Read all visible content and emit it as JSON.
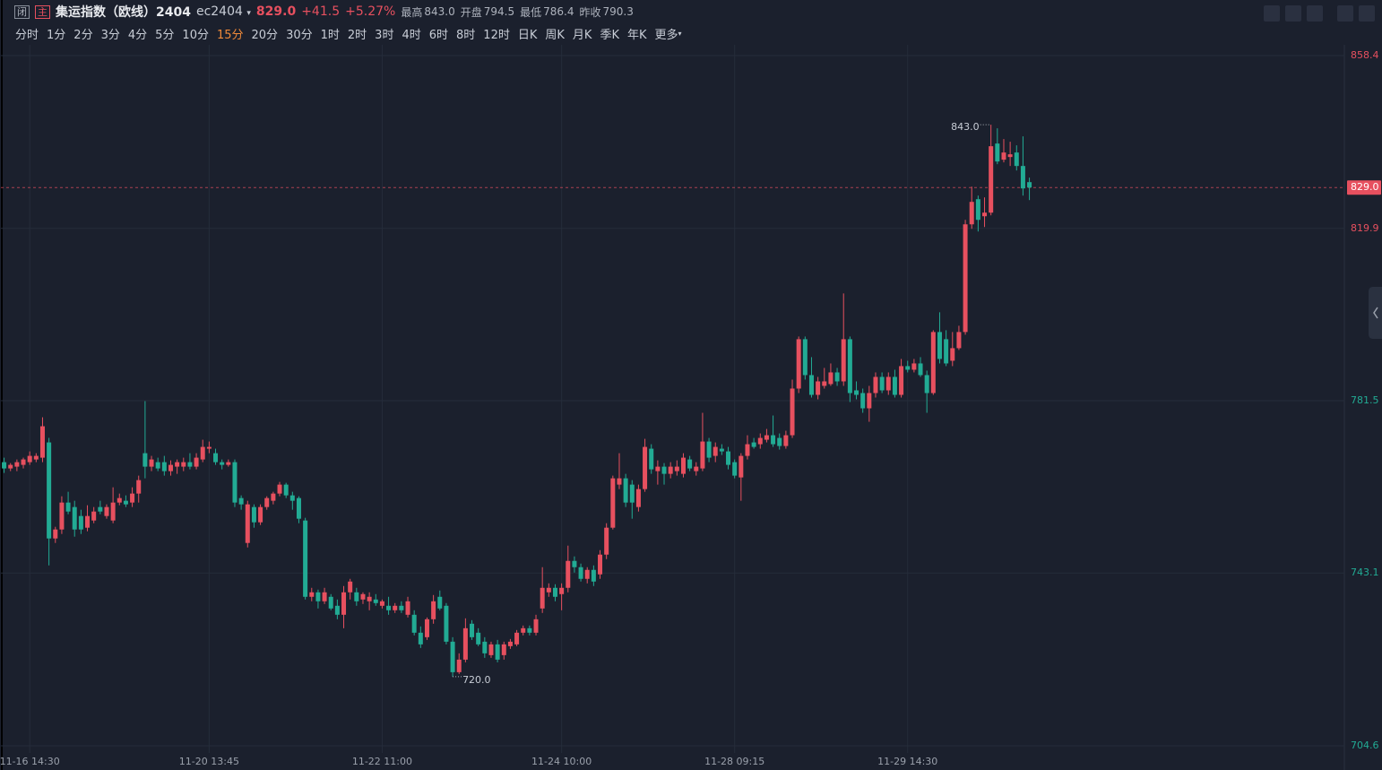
{
  "header": {
    "flags": [
      "闭",
      "主"
    ],
    "name": "集运指数（欧线）2404",
    "code": "ec2404",
    "price": "829.0",
    "change": "+41.5",
    "pct": "+5.27%",
    "stats": [
      {
        "label": "最高",
        "value": "843.0"
      },
      {
        "label": "开盘",
        "value": "794.5"
      },
      {
        "label": "最低",
        "value": "786.4"
      }
    ],
    "prev_close_label": "昨收",
    "timeframes": [
      "分时",
      "1分",
      "2分",
      "3分",
      "4分",
      "5分",
      "10分",
      "15分",
      "20分",
      "30分",
      "1时",
      "2时",
      "3时",
      "4时",
      "6时",
      "8时",
      "12时",
      "日K",
      "周K",
      "月K",
      "季K",
      "年K",
      "更多"
    ],
    "active": "15分"
  },
  "chart_data": {
    "type": "candlestick",
    "up_color": "#e7505f",
    "down_color": "#22ab94",
    "grid": true,
    "prev_close": 790.3,
    "ylim": [
      704.6,
      858.4
    ],
    "yticks": [
      704.6,
      743.1,
      781.5,
      819.9,
      858.4
    ],
    "last": {
      "value": 829,
      "label": "829.0"
    },
    "extremes": [
      {
        "value": 843,
        "label": "843.0"
      },
      {
        "value": 720,
        "label": "720.0"
      }
    ],
    "categories": [
      null,
      null,
      null,
      null,
      "11-16 14:30",
      null,
      null,
      null,
      null,
      null,
      null,
      null,
      null,
      null,
      null,
      null,
      null,
      null,
      null,
      null,
      null,
      null,
      null,
      null,
      null,
      null,
      null,
      null,
      null,
      null,
      null,
      null,
      "11-20 13:45",
      null,
      null,
      null,
      null,
      null,
      null,
      null,
      null,
      null,
      null,
      null,
      null,
      null,
      null,
      null,
      null,
      null,
      null,
      null,
      null,
      null,
      null,
      null,
      null,
      null,
      null,
      "11-22 11:00",
      null,
      null,
      null,
      null,
      null,
      null,
      null,
      null,
      null,
      null,
      null,
      null,
      null,
      null,
      null,
      null,
      null,
      null,
      null,
      null,
      null,
      null,
      null,
      null,
      null,
      null,
      null,
      "11-24 10:00",
      null,
      null,
      null,
      null,
      null,
      null,
      null,
      null,
      null,
      null,
      null,
      null,
      null,
      null,
      null,
      null,
      null,
      null,
      null,
      null,
      null,
      null,
      null,
      null,
      null,
      null,
      "11-28 09:15",
      null,
      null,
      null,
      null,
      null,
      null,
      null,
      null,
      null,
      null,
      null,
      null,
      null,
      null,
      null,
      null,
      null,
      null,
      null,
      null,
      null,
      null,
      null,
      null,
      null,
      null,
      "11-29 14:30",
      null,
      null,
      null,
      null,
      null,
      null,
      null,
      null,
      null,
      null,
      null,
      null,
      null,
      null,
      null,
      null,
      null
    ],
    "ohlc": [
      [
        767.8,
        768.8,
        765.4,
        766.4
      ],
      [
        766.4,
        767.6,
        765.8,
        767.2
      ],
      [
        766.8,
        768.4,
        765.8,
        767.8
      ],
      [
        767.2,
        768.8,
        766.4,
        768.4
      ],
      [
        767.8,
        770.2,
        767.2,
        769.2
      ],
      [
        768.4,
        769.8,
        767.8,
        769.2
      ],
      [
        768.8,
        777.8,
        767.8,
        775.8
      ],
      [
        772.2,
        773.2,
        744.8,
        750.8
      ],
      [
        750.8,
        753.4,
        749.8,
        752.8
      ],
      [
        752.8,
        760.2,
        751.8,
        758.8
      ],
      [
        758.8,
        761.2,
        756.2,
        756.8
      ],
      [
        757.8,
        759.2,
        751.2,
        752.8
      ],
      [
        755.8,
        757.2,
        751.8,
        752.8
      ],
      [
        753.2,
        758.2,
        752.4,
        755.8
      ],
      [
        754.8,
        757.8,
        754.2,
        756.8
      ],
      [
        757.8,
        759.2,
        756.2,
        756.8
      ],
      [
        755.8,
        758.4,
        755.2,
        757.8
      ],
      [
        754.8,
        762.2,
        754.2,
        758.8
      ],
      [
        758.8,
        760.8,
        758.2,
        759.8
      ],
      [
        759.2,
        760.4,
        757.8,
        758.4
      ],
      [
        758.8,
        762.2,
        757.8,
        760.8
      ],
      [
        760.8,
        764.8,
        758.8,
        763.8
      ],
      [
        769.8,
        781.4,
        764.2,
        766.8
      ],
      [
        766.8,
        769.2,
        765.8,
        768.4
      ],
      [
        767.8,
        768.8,
        765.8,
        766.4
      ],
      [
        767.8,
        769.2,
        764.8,
        765.8
      ],
      [
        765.8,
        768.2,
        764.8,
        767.2
      ],
      [
        766.8,
        768.4,
        765.2,
        767.8
      ],
      [
        766.8,
        768.8,
        765.8,
        767.8
      ],
      [
        767.8,
        769.8,
        766.2,
        766.8
      ],
      [
        766.8,
        769.8,
        766.2,
        768.8
      ],
      [
        768.4,
        772.8,
        767.8,
        771.2
      ],
      [
        770.8,
        772.4,
        769.8,
        771.2
      ],
      [
        769.8,
        770.8,
        767.2,
        767.8
      ],
      [
        767.8,
        768.4,
        766.2,
        767.2
      ],
      [
        767.2,
        768.4,
        766.8,
        767.8
      ],
      [
        767.8,
        768.4,
        757.8,
        758.8
      ],
      [
        759.8,
        760.4,
        757.2,
        758.4
      ],
      [
        749.8,
        759.2,
        748.8,
        758.4
      ],
      [
        757.8,
        758.4,
        753.2,
        754.4
      ],
      [
        754.4,
        758.4,
        753.8,
        757.8
      ],
      [
        757.8,
        760.2,
        757.2,
        759.8
      ],
      [
        759.2,
        761.2,
        758.4,
        760.8
      ],
      [
        760.8,
        763.4,
        760.2,
        762.8
      ],
      [
        762.8,
        763.2,
        759.8,
        760.4
      ],
      [
        760.4,
        761.2,
        757.2,
        759.2
      ],
      [
        759.8,
        760.2,
        754.2,
        755.2
      ],
      [
        754.8,
        755.4,
        737.2,
        737.8
      ],
      [
        737.8,
        739.8,
        736.8,
        738.8
      ],
      [
        738.8,
        739.4,
        735.2,
        736.8
      ],
      [
        736.8,
        739.8,
        736.2,
        738.8
      ],
      [
        737.8,
        738.4,
        734.8,
        735.2
      ],
      [
        735.8,
        737.2,
        732.8,
        733.8
      ],
      [
        733.8,
        740.2,
        730.8,
        738.8
      ],
      [
        738.8,
        741.8,
        737.2,
        741.2
      ],
      [
        738.8,
        739.8,
        735.8,
        736.8
      ],
      [
        737.2,
        738.8,
        736.2,
        738.4
      ],
      [
        736.8,
        738.8,
        734.8,
        737.8
      ],
      [
        737.2,
        738.4,
        735.8,
        736.4
      ],
      [
        735.8,
        737.2,
        735.2,
        736.8
      ],
      [
        735.8,
        737.8,
        733.8,
        734.8
      ],
      [
        734.8,
        736.4,
        734.2,
        735.8
      ],
      [
        735.8,
        736.8,
        734.2,
        734.8
      ],
      [
        733.8,
        737.8,
        733.2,
        736.8
      ],
      [
        733.8,
        734.8,
        729.2,
        729.8
      ],
      [
        729.8,
        731.2,
        726.4,
        727.2
      ],
      [
        728.8,
        733.2,
        728.2,
        732.8
      ],
      [
        732.8,
        738.2,
        731.8,
        736.8
      ],
      [
        737.8,
        739.2,
        734.8,
        735.2
      ],
      [
        735.8,
        736.4,
        727.2,
        727.8
      ],
      [
        727.8,
        728.8,
        720.0,
        721.0
      ],
      [
        721.0,
        725.2,
        720.6,
        723.8
      ],
      [
        723.8,
        733.0,
        723.2,
        730.8
      ],
      [
        731.8,
        732.6,
        728.2,
        728.8
      ],
      [
        729.8,
        730.8,
        726.8,
        727.2
      ],
      [
        727.8,
        728.8,
        724.2,
        725.2
      ],
      [
        724.8,
        727.8,
        724.2,
        727.2
      ],
      [
        727.2,
        728.2,
        723.2,
        723.8
      ],
      [
        724.8,
        727.8,
        723.8,
        727.2
      ],
      [
        726.8,
        728.4,
        726.2,
        727.8
      ],
      [
        727.2,
        730.4,
        726.8,
        729.8
      ],
      [
        729.8,
        731.4,
        729.2,
        730.8
      ],
      [
        730.8,
        731.4,
        729.2,
        729.8
      ],
      [
        729.8,
        733.8,
        729.2,
        732.8
      ],
      [
        735.2,
        744.4,
        734.2,
        739.8
      ],
      [
        738.8,
        740.8,
        737.8,
        739.8
      ],
      [
        739.8,
        740.6,
        736.8,
        737.8
      ],
      [
        738.4,
        740.8,
        734.8,
        739.8
      ],
      [
        739.8,
        749.2,
        738.8,
        745.8
      ],
      [
        745.8,
        746.8,
        743.2,
        744.4
      ],
      [
        744.4,
        745.2,
        741.2,
        741.8
      ],
      [
        741.8,
        744.4,
        740.8,
        743.8
      ],
      [
        743.8,
        744.8,
        740.2,
        741.2
      ],
      [
        742.8,
        748.2,
        741.8,
        747.2
      ],
      [
        747.2,
        754.2,
        746.2,
        753.2
      ],
      [
        753.2,
        764.8,
        752.8,
        764.2
      ],
      [
        762.8,
        769.8,
        761.8,
        764.2
      ],
      [
        764.2,
        765.2,
        757.8,
        758.8
      ],
      [
        762.8,
        763.8,
        755.2,
        758.8
      ],
      [
        757.8,
        762.8,
        756.8,
        761.8
      ],
      [
        761.8,
        773.0,
        761.2,
        771.2
      ],
      [
        770.8,
        771.8,
        765.2,
        766.2
      ],
      [
        765.8,
        768.2,
        762.8,
        766.8
      ],
      [
        766.8,
        767.6,
        762.8,
        765.2
      ],
      [
        765.2,
        767.8,
        764.2,
        766.8
      ],
      [
        765.8,
        768.2,
        764.8,
        766.8
      ],
      [
        765.2,
        769.8,
        764.4,
        768.8
      ],
      [
        768.4,
        769.2,
        765.8,
        766.4
      ],
      [
        765.8,
        767.8,
        764.8,
        766.8
      ],
      [
        766.4,
        778.8,
        765.8,
        772.4
      ],
      [
        772.4,
        773.2,
        767.8,
        768.8
      ],
      [
        769.2,
        772.2,
        767.8,
        771.2
      ],
      [
        770.8,
        771.8,
        769.4,
        770.2
      ],
      [
        770.2,
        771.2,
        766.2,
        767.2
      ],
      [
        767.8,
        768.4,
        764.2,
        764.8
      ],
      [
        764.4,
        769.8,
        759.2,
        769.2
      ],
      [
        769.2,
        773.8,
        768.4,
        771.8
      ],
      [
        772.2,
        773.2,
        770.8,
        771.2
      ],
      [
        771.8,
        774.2,
        770.8,
        773.2
      ],
      [
        772.8,
        775.2,
        772.2,
        773.8
      ],
      [
        773.8,
        778.2,
        771.2,
        771.8
      ],
      [
        773.2,
        774.2,
        770.6,
        771.4
      ],
      [
        771.4,
        774.8,
        770.8,
        773.8
      ],
      [
        773.8,
        786.2,
        773.2,
        784.2
      ],
      [
        784.2,
        795.8,
        783.2,
        795.2
      ],
      [
        795.2,
        795.8,
        786.2,
        787.2
      ],
      [
        787.2,
        791.2,
        782.2,
        782.8
      ],
      [
        782.8,
        786.8,
        781.8,
        785.8
      ],
      [
        784.8,
        788.8,
        784.2,
        785.8
      ],
      [
        785.2,
        789.8,
        784.8,
        787.8
      ],
      [
        787.8,
        788.8,
        784.8,
        785.8
      ],
      [
        785.8,
        805.4,
        784.8,
        795.2
      ],
      [
        795.2,
        795.8,
        781.2,
        783.2
      ],
      [
        783.8,
        785.8,
        781.8,
        782.8
      ],
      [
        783.2,
        784.2,
        778.8,
        779.8
      ],
      [
        779.8,
        784.8,
        776.8,
        783.2
      ],
      [
        783.2,
        787.8,
        782.2,
        786.8
      ],
      [
        786.8,
        787.8,
        783.2,
        783.8
      ],
      [
        783.8,
        787.8,
        782.8,
        786.8
      ],
      [
        786.8,
        788.4,
        782.2,
        782.8
      ],
      [
        782.8,
        790.8,
        782.2,
        789.2
      ],
      [
        789.2,
        790.4,
        787.8,
        788.4
      ],
      [
        788.4,
        790.8,
        787.8,
        789.8
      ],
      [
        789.8,
        791.2,
        786.8,
        787.2
      ],
      [
        787.2,
        788.2,
        778.8,
        783.2
      ],
      [
        783.2,
        797.2,
        782.8,
        796.8
      ],
      [
        796.8,
        801.2,
        789.8,
        790.8
      ],
      [
        795.2,
        797.2,
        789.2,
        789.8
      ],
      [
        790.4,
        796.8,
        789.2,
        793.2
      ],
      [
        793.2,
        798.2,
        792.8,
        796.8
      ],
      [
        796.8,
        821.8,
        796.2,
        820.8
      ],
      [
        820.8,
        829.2,
        819.8,
        825.8
      ],
      [
        826.4,
        827.2,
        819.2,
        821.8
      ],
      [
        822.6,
        826.8,
        820.2,
        823.4
      ],
      [
        823.4,
        843.0,
        822.8,
        838.2
      ],
      [
        838.8,
        842.2,
        834.2,
        834.8
      ],
      [
        835.2,
        839.8,
        834.6,
        836.8
      ],
      [
        835.8,
        839.2,
        833.8,
        836.4
      ],
      [
        836.8,
        838.4,
        832.8,
        833.8
      ],
      [
        833.8,
        840.4,
        827.2,
        828.8
      ],
      [
        830.2,
        831.2,
        826.2,
        829.0
      ]
    ]
  }
}
